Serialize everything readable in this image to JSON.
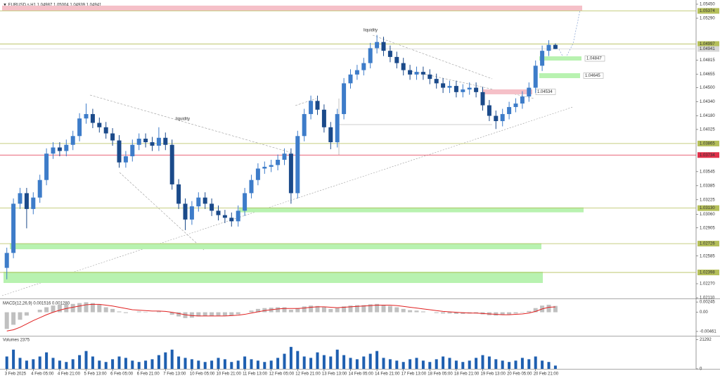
{
  "chart_data": [
    {
      "type": "candlestick",
      "title": "▼ EURUSD.s,H1  1.04987 1.05004 1.04939 1.04941",
      "categories": [
        "3 Feb 2025",
        null,
        null,
        null,
        "4 Feb 05:00",
        null,
        null,
        null,
        "4 Feb 21:00",
        null,
        null,
        null,
        "5 Feb 13:00",
        null,
        null,
        null,
        "6 Feb 05:00",
        null,
        null,
        null,
        "6 Feb 21:00",
        null,
        null,
        null,
        "7 Feb 13:00",
        null,
        null,
        null,
        "10 Feb 05:00",
        null,
        null,
        null,
        "10 Feb 21:00",
        null,
        null,
        null,
        "11 Feb 13:00",
        null,
        null,
        null,
        "12 Feb 05:00",
        null,
        null,
        null,
        "12 Feb 21:00",
        null,
        null,
        null,
        "13 Feb 13:00",
        null,
        null,
        null,
        "14 Feb 05:00",
        null,
        null,
        null,
        "14 Feb 21:00",
        null,
        null,
        null,
        "17 Feb 13:00",
        null,
        null,
        null,
        "18 Feb 05:00",
        null,
        null,
        null,
        "18 Feb 21:00",
        null,
        null,
        null,
        "19 Feb 13:00",
        null,
        null,
        null,
        "20 Feb 05:00",
        null,
        null,
        null,
        "20 Feb 21:00",
        null,
        null,
        null
      ],
      "open": [
        1.0245,
        1.0262,
        1.0318,
        1.033,
        1.0312,
        1.0325,
        1.0345,
        1.0375,
        1.0382,
        1.0378,
        1.0385,
        1.0395,
        1.0415,
        1.042,
        1.041,
        1.0405,
        1.0398,
        1.039,
        1.0365,
        1.0372,
        1.0385,
        1.0392,
        1.0388,
        1.0384,
        1.0393,
        1.0385,
        1.034,
        1.0318,
        1.03,
        1.0315,
        1.0325,
        1.0318,
        1.031,
        1.0305,
        1.0302,
        1.0298,
        1.031,
        1.033,
        1.0345,
        1.0358,
        1.036,
        1.0362,
        1.0368,
        1.0375,
        1.033,
        1.0395,
        1.042,
        1.0435,
        1.0425,
        1.0405,
        1.0388,
        1.042,
        1.0455,
        1.0465,
        1.047,
        1.0478,
        1.0495,
        1.0502,
        1.0492,
        1.0485,
        1.0478,
        1.047,
        1.0465,
        1.0468,
        1.0465,
        1.046,
        1.0455,
        1.045,
        1.0452,
        1.0445,
        1.0448,
        1.045,
        1.0445,
        1.043,
        1.0418,
        1.0412,
        1.042,
        1.0428,
        1.0432,
        1.044,
        1.045,
        1.0475,
        1.0492,
        1.04987
      ],
      "high": [
        1.0268,
        1.0324,
        1.0336,
        1.0336,
        1.0331,
        1.0351,
        1.0381,
        1.0388,
        1.0388,
        1.0391,
        1.0401,
        1.0421,
        1.0432,
        1.0426,
        1.0416,
        1.0411,
        1.0404,
        1.0396,
        1.0378,
        1.0391,
        1.0398,
        1.0398,
        1.0394,
        1.0405,
        1.0399,
        1.0391,
        1.0346,
        1.0324,
        1.0321,
        1.0331,
        1.0331,
        1.0324,
        1.0316,
        1.0311,
        1.0308,
        1.0316,
        1.0336,
        1.0351,
        1.0364,
        1.0366,
        1.0368,
        1.0374,
        1.0381,
        1.0381,
        1.0401,
        1.0426,
        1.0441,
        1.0441,
        1.0431,
        1.0411,
        1.0426,
        1.0461,
        1.0471,
        1.0476,
        1.0484,
        1.0501,
        1.051,
        1.0508,
        1.0498,
        1.0491,
        1.0484,
        1.0476,
        1.0474,
        1.0474,
        1.0471,
        1.0466,
        1.0461,
        1.0458,
        1.0458,
        1.0454,
        1.0456,
        1.0456,
        1.0451,
        1.0436,
        1.0424,
        1.0426,
        1.0434,
        1.0438,
        1.0446,
        1.0456,
        1.0481,
        1.0498,
        1.0504,
        1.05004
      ],
      "low": [
        1.0232,
        1.0256,
        1.0312,
        1.029,
        1.0306,
        1.0319,
        1.0339,
        1.0369,
        1.0372,
        1.0372,
        1.0379,
        1.0389,
        1.0409,
        1.0404,
        1.0399,
        1.0392,
        1.0384,
        1.0359,
        1.0359,
        1.0366,
        1.0379,
        1.0382,
        1.0378,
        1.0378,
        1.0379,
        1.0334,
        1.0312,
        1.0288,
        1.0294,
        1.0309,
        1.0312,
        1.0304,
        1.0299,
        1.0296,
        1.0292,
        1.0292,
        1.0304,
        1.0324,
        1.0339,
        1.0352,
        1.0354,
        1.0356,
        1.0362,
        1.0318,
        1.0324,
        1.0389,
        1.0414,
        1.0419,
        1.0399,
        1.038,
        1.0382,
        1.0414,
        1.0449,
        1.0459,
        1.0464,
        1.0472,
        1.0489,
        1.0486,
        1.0479,
        1.0472,
        1.0464,
        1.0459,
        1.0459,
        1.0459,
        1.0454,
        1.0449,
        1.0444,
        1.0444,
        1.0439,
        1.0439,
        1.0442,
        1.0439,
        1.0424,
        1.0412,
        1.0403,
        1.0406,
        1.0414,
        1.0422,
        1.0426,
        1.0434,
        1.0444,
        1.0469,
        1.0486,
        1.04939
      ],
      "close": [
        1.0262,
        1.0318,
        1.033,
        1.0312,
        1.0325,
        1.0345,
        1.0375,
        1.0382,
        1.0378,
        1.0385,
        1.0395,
        1.0415,
        1.042,
        1.041,
        1.0405,
        1.0398,
        1.039,
        1.0365,
        1.0372,
        1.0385,
        1.0392,
        1.0388,
        1.0384,
        1.0393,
        1.0385,
        1.034,
        1.0318,
        1.03,
        1.0315,
        1.0325,
        1.0318,
        1.031,
        1.0305,
        1.0302,
        1.0298,
        1.031,
        1.033,
        1.0345,
        1.0358,
        1.036,
        1.0362,
        1.0368,
        1.0375,
        1.033,
        1.0395,
        1.042,
        1.0435,
        1.0425,
        1.0405,
        1.0388,
        1.042,
        1.0455,
        1.0465,
        1.047,
        1.0478,
        1.0495,
        1.0502,
        1.0492,
        1.0485,
        1.0478,
        1.047,
        1.0465,
        1.0468,
        1.0465,
        1.046,
        1.0455,
        1.045,
        1.0452,
        1.0445,
        1.0448,
        1.045,
        1.0445,
        1.043,
        1.0418,
        1.0412,
        1.042,
        1.0428,
        1.0432,
        1.044,
        1.045,
        1.0475,
        1.0492,
        1.04987,
        1.04941
      ],
      "up_color": "#3d7cc9",
      "down_color": "#1b4a8a",
      "ylim": [
        1.02102,
        1.05498
      ],
      "yticks": [
        {
          "value": 1.0545,
          "label": "1.05450"
        },
        {
          "value": 1.0529,
          "label": "1.05290"
        },
        1.04815,
        1.04655,
        {
          "value": 1.045,
          "label": "1.04500"
        },
        {
          "value": 1.0434,
          "label": "1.04340"
        },
        {
          "value": 1.0418,
          "label": "1.04180"
        },
        1.04025,
        1.03545,
        1.03385,
        1.03225,
        {
          "value": 1.0306,
          "label": "1.03060"
        },
        1.02905,
        1.02585,
        {
          "value": 1.0227,
          "label": "1.02270"
        },
        {
          "value": 1.0211,
          "label": "1.02110"
        }
      ],
      "levels": [
        {
          "value": 1.05374,
          "label": "1.05374",
          "color": "#b5bf5a",
          "text_color": "#ffffff"
        },
        {
          "value": 1.04997,
          "label": "1.04997",
          "color": "#b5bf5a",
          "text_color": "#ffffff"
        },
        {
          "value": 1.04941,
          "label": "1.04941",
          "color": "#d8d8d8",
          "text_color": "#222222"
        },
        {
          "value": 1.03865,
          "label": "1.03865",
          "color": "#b5bf5a",
          "text_color": "#ffffff"
        },
        {
          "value": 1.03734,
          "label": "1.03734",
          "color": "#e0304a",
          "text_color": "#ffffff"
        },
        {
          "value": 1.0313,
          "label": "1.03130",
          "color": "#b5bf5a",
          "text_color": "#ffffff"
        },
        {
          "value": 1.02726,
          "label": "1.02726",
          "color": "#b5bf5a",
          "text_color": "#ffffff"
        },
        {
          "value": 1.02398,
          "label": "1.02398",
          "color": "#b5bf5a",
          "text_color": "#ffffff"
        }
      ],
      "zones": [
        {
          "top": 1.05434,
          "bottom": 1.05378,
          "color": "#f5c0c8"
        },
        {
          "top": 1.04857,
          "bottom": 1.04809,
          "color": "#b8f2b0",
          "label": "1.04847"
        },
        {
          "top": 1.04665,
          "bottom": 1.04609,
          "color": "#b8f2b0",
          "label": "1.04645"
        },
        {
          "top": 1.04481,
          "bottom": 1.04425,
          "color": "#f5c0c8",
          "label": "1.04534"
        },
        {
          "top": 1.03138,
          "bottom": 1.03082,
          "color": "#b8f2b0"
        },
        {
          "top": 1.0273,
          "bottom": 1.02662,
          "color": "#b8f2b0"
        },
        {
          "top": 1.02406,
          "bottom": 1.02278,
          "color": "#b8f2b0"
        }
      ],
      "annotations": [
        "liquidity",
        "liquidity"
      ]
    },
    {
      "type": "macd",
      "label": "MACD(12,26,9) 0.001516 0.001280",
      "values": [
        -0.004,
        -0.003,
        -0.0018,
        -0.0008,
        0.0,
        0.0006,
        0.0012,
        0.0016,
        0.0018,
        0.0019,
        0.002,
        0.0022,
        0.0024,
        0.0022,
        0.0018,
        0.0012,
        0.0008,
        0.0002,
        -0.0002,
        0.0,
        0.0002,
        0.0001,
        0.0,
        0.0002,
        0.0,
        -0.0006,
        -0.001,
        -0.0014,
        -0.0013,
        -0.001,
        -0.0009,
        -0.0009,
        -0.0008,
        -0.0008,
        -0.0008,
        -0.0005,
        0.0,
        0.0004,
        0.0008,
        0.001,
        0.0011,
        0.0012,
        0.0012,
        0.0006,
        0.001,
        0.0014,
        0.0016,
        0.0015,
        0.0012,
        0.0008,
        0.001,
        0.0014,
        0.0016,
        0.0017,
        0.0017,
        0.0019,
        0.002,
        0.0018,
        0.0015,
        0.0012,
        0.0008,
        0.0005,
        0.0004,
        0.0002,
        0.0,
        -0.0002,
        -0.0003,
        -0.0003,
        -0.0004,
        -0.0004,
        -0.0003,
        -0.0003,
        -0.0005,
        -0.0007,
        -0.0008,
        -0.0006,
        -0.0005,
        -0.0003,
        -0.0001,
        0.0003,
        0.001,
        0.0016,
        0.0018,
        0.001516
      ],
      "signal": [
        -0.0045,
        -0.0042,
        -0.0036,
        -0.0028,
        -0.002,
        -0.0013,
        -0.0006,
        0.0,
        0.0005,
        0.0009,
        0.0012,
        0.0015,
        0.0018,
        0.0019,
        0.0019,
        0.0017,
        0.0015,
        0.0012,
        0.0009,
        0.0006,
        0.0005,
        0.0004,
        0.0003,
        0.0003,
        0.0002,
        0.0,
        -0.0003,
        -0.0006,
        -0.0008,
        -0.0009,
        -0.0009,
        -0.0009,
        -0.0009,
        -0.0009,
        -0.0008,
        -0.0007,
        -0.0005,
        -0.0002,
        0.0001,
        0.0004,
        0.0006,
        0.0008,
        0.0009,
        0.0009,
        0.0009,
        0.001,
        0.0012,
        0.0013,
        0.0013,
        0.0012,
        0.0011,
        0.0012,
        0.0013,
        0.0014,
        0.0015,
        0.0016,
        0.0017,
        0.0017,
        0.0017,
        0.0016,
        0.0014,
        0.0012,
        0.001,
        0.0008,
        0.0006,
        0.0004,
        0.0002,
        0.0001,
        0.0,
        -0.0001,
        -0.0002,
        -0.0002,
        -0.0003,
        -0.0004,
        -0.0005,
        -0.0006,
        -0.0006,
        -0.0005,
        -0.0004,
        -0.0002,
        0.0002,
        0.0008,
        0.0012,
        0.00128
      ],
      "hist_color": "#c0c0c0",
      "signal_color": "#e02020",
      "ylim": [
        -0.00564,
        0.00314
      ],
      "yticks": [
        0.00245,
        {
          "value": 0,
          "label": "0.00"
        },
        -0.00461
      ]
    },
    {
      "type": "bar",
      "label": "Volumes 2375",
      "values": [
        9000,
        14000,
        8000,
        6000,
        7000,
        9000,
        12000,
        8000,
        6000,
        5000,
        7000,
        10000,
        13000,
        9000,
        6000,
        5000,
        7000,
        9000,
        8000,
        6000,
        5000,
        6000,
        7000,
        10000,
        12000,
        14000,
        9000,
        8000,
        7000,
        6000,
        5000,
        6000,
        8000,
        7000,
        5000,
        6000,
        9000,
        7000,
        6000,
        5000,
        6000,
        8000,
        11000,
        16000,
        13000,
        9000,
        8000,
        12000,
        10000,
        9000,
        14000,
        10000,
        8000,
        7000,
        9000,
        11000,
        13000,
        8000,
        7000,
        6000,
        5000,
        7000,
        8000,
        6000,
        5000,
        7000,
        9000,
        8000,
        6000,
        5000,
        6000,
        8000,
        10000,
        9000,
        7000,
        6000,
        5000,
        6000,
        8000,
        7000,
        9000,
        6000,
        5000,
        2375
      ],
      "color": "#1e5fb0",
      "ylim": [
        0,
        23600
      ],
      "yticks": [
        21292,
        0
      ]
    }
  ]
}
